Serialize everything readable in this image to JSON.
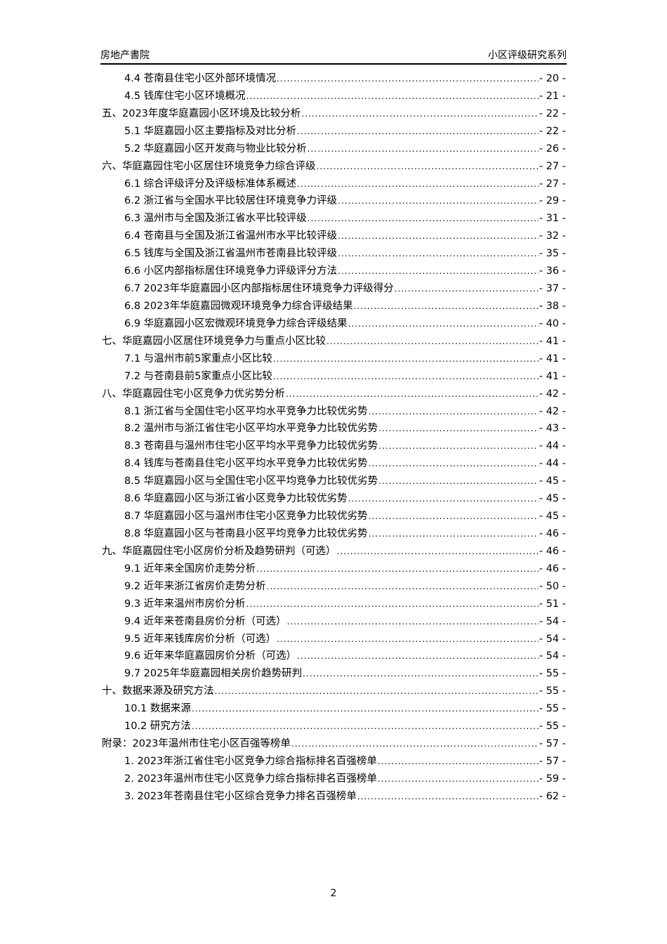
{
  "header": {
    "left": "房地产書院",
    "right": "小区评级研究系列"
  },
  "toc": [
    {
      "level": 1,
      "title": "4.4 苍南县住宅小区外部环境情况",
      "page": "- 20 -"
    },
    {
      "level": 1,
      "title": "4.5 钱库住宅小区环境概况",
      "page": "- 21 -"
    },
    {
      "level": 0,
      "title": "五、2023年度华庭嘉园小区环境及比较分析",
      "page": "- 22 -"
    },
    {
      "level": 1,
      "title": "5.1 华庭嘉园小区主要指标及对比分析",
      "page": "- 22 -"
    },
    {
      "level": 1,
      "title": "5.2 华庭嘉园小区开发商与物业比较分析",
      "page": "- 26 -"
    },
    {
      "level": 0,
      "title": "六、华庭嘉园住宅小区居住环境竞争力综合评级",
      "page": "- 27 -"
    },
    {
      "level": 1,
      "title": "6.1 综合评级评分及评级标准体系概述",
      "page": "- 27 -"
    },
    {
      "level": 1,
      "title": "6.2 浙江省与全国水平比较居住环境竞争力评级",
      "page": "- 29 -"
    },
    {
      "level": 1,
      "title": "6.3 温州市与全国及浙江省水平比较评级",
      "page": "- 31 -"
    },
    {
      "level": 1,
      "title": "6.4 苍南县与全国及浙江省温州市水平比较评级",
      "page": "- 32 -"
    },
    {
      "level": 1,
      "title": "6.5 钱库与全国及浙江省温州市苍南县比较评级",
      "page": "- 35 -"
    },
    {
      "level": 1,
      "title": "6.6 小区内部指标居住环境竞争力评级评分方法",
      "page": "- 36 -"
    },
    {
      "level": 1,
      "title": "6.7 2023年华庭嘉园小区内部指标居住环境竞争力评级得分",
      "page": "- 37 -"
    },
    {
      "level": 1,
      "title": "6.8 2023年华庭嘉园微观环境竞争力综合评级结果",
      "page": "- 38 -"
    },
    {
      "level": 1,
      "title": "6.9 华庭嘉园小区宏微观环境竞争力综合评级结果",
      "page": "- 40 -"
    },
    {
      "level": 0,
      "title": "七、华庭嘉园小区居住环境竞争力与重点小区比较",
      "page": "- 41 -"
    },
    {
      "level": 1,
      "title": "7.1 与温州市前5家重点小区比较",
      "page": "- 41 -"
    },
    {
      "level": 1,
      "title": "7.2 与苍南县前5家重点小区比较",
      "page": "- 41 -"
    },
    {
      "level": 0,
      "title": "八、华庭嘉园住宅小区竞争力优劣势分析",
      "page": "- 42 -"
    },
    {
      "level": 1,
      "title": "8.1 浙江省与全国住宅小区平均水平竞争力比较优劣势",
      "page": "- 42 -"
    },
    {
      "level": 1,
      "title": "8.2 温州市与浙江省住宅小区平均水平竞争力比较优劣势",
      "page": "- 43 -"
    },
    {
      "level": 1,
      "title": "8.3 苍南县与温州市住宅小区平均水平竞争力比较优劣势",
      "page": "- 44 -"
    },
    {
      "level": 1,
      "title": "8.4 钱库与苍南县住宅小区平均水平竞争力比较优劣势",
      "page": "- 44 -"
    },
    {
      "level": 1,
      "title": "8.5 华庭嘉园小区与全国住宅小区平均竞争力比较优劣势",
      "page": "- 45 -"
    },
    {
      "level": 1,
      "title": "8.6 华庭嘉园小区与浙江省小区竞争力比较优劣势",
      "page": "- 45 -"
    },
    {
      "level": 1,
      "title": "8.7 华庭嘉园小区与温州市住宅小区竞争力比较优劣势",
      "page": "- 45 -"
    },
    {
      "level": 1,
      "title": "8.8 华庭嘉园小区与苍南县小区平均竞争力比较优劣势",
      "page": "- 46 -"
    },
    {
      "level": 0,
      "title": "九、华庭嘉园住宅小区房价分析及趋势研判（可选）",
      "page": "- 46 -"
    },
    {
      "level": 1,
      "title": "9.1 近年来全国房价走势分析",
      "page": "- 46 -"
    },
    {
      "level": 1,
      "title": "9.2 近年来浙江省房价走势分析",
      "page": "- 50 -"
    },
    {
      "level": 1,
      "title": "9.3 近年来温州市房价分析",
      "page": "- 51 -"
    },
    {
      "level": 1,
      "title": "9.4 近年来苍南县房价分析（可选）",
      "page": "- 54 -"
    },
    {
      "level": 1,
      "title": "9.5 近年来钱库房价分析（可选）",
      "page": "- 54 -"
    },
    {
      "level": 1,
      "title": "9.6 近年来华庭嘉园房价分析（可选）",
      "page": "- 54 -"
    },
    {
      "level": 1,
      "title": "9.7 2025年华庭嘉园相关房价趋势研判",
      "page": "- 55 -"
    },
    {
      "level": 0,
      "title": "十、数据来源及研究方法",
      "page": "- 55 -"
    },
    {
      "level": 1,
      "title": "10.1 数据来源",
      "page": "- 55 -"
    },
    {
      "level": 1,
      "title": "10.2 研究方法",
      "page": "- 55 -"
    },
    {
      "level": 0,
      "title": "附录：2023年温州市住宅小区百强等榜单",
      "page": "- 57 -"
    },
    {
      "level": 1,
      "title": "1. 2023年浙江省住宅小区竞争力综合指标排名百强榜单",
      "page": "- 57 -"
    },
    {
      "level": 1,
      "title": "2. 2023年温州市住宅小区竞争力综合指标排名百强榜单",
      "page": "- 59 -"
    },
    {
      "level": 1,
      "title": "3. 2023年苍南县住宅小区综合竞争力排名百强榜单",
      "page": "- 62 -"
    }
  ],
  "footer": {
    "page_number": "2"
  }
}
